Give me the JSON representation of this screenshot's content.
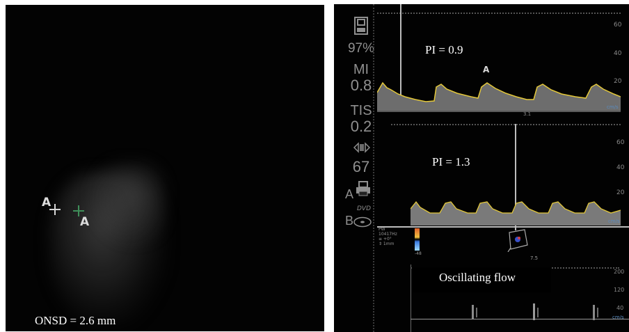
{
  "left_panel": {
    "markers": [
      "A",
      "A"
    ],
    "onsd_text": "ONSD = 2.6 mm"
  },
  "sidebar": {
    "battery_value": "97%",
    "mi_label": "MI",
    "mi_value": "0.8",
    "tis_label": "TIS",
    "tis_value": "0.2",
    "gain_value": "67",
    "a_label": "A",
    "b_label": "B",
    "dvd_label": "DVD"
  },
  "traces": {
    "top": {
      "annotation": "PI = 0.9",
      "marker": "A",
      "scale_ticks": [
        "60",
        "40",
        "20"
      ],
      "unit": "cm/s",
      "baseline_label": "3.1"
    },
    "middle": {
      "annotation": "PI = 1.3",
      "scale_ticks": [
        "60",
        "40",
        "20"
      ],
      "unit": "cm/s"
    },
    "bottom": {
      "annotation": "Oscillating flow",
      "scale_ticks": [
        "200",
        "120",
        "40"
      ],
      "unit": "cm/s",
      "mid_label": "7.5"
    }
  },
  "probe_info": {
    "lines": [
      "PW",
      "10417Hz",
      "≡ +0°",
      "⇕ 1mm"
    ],
    "colorbar_low": "-48"
  }
}
